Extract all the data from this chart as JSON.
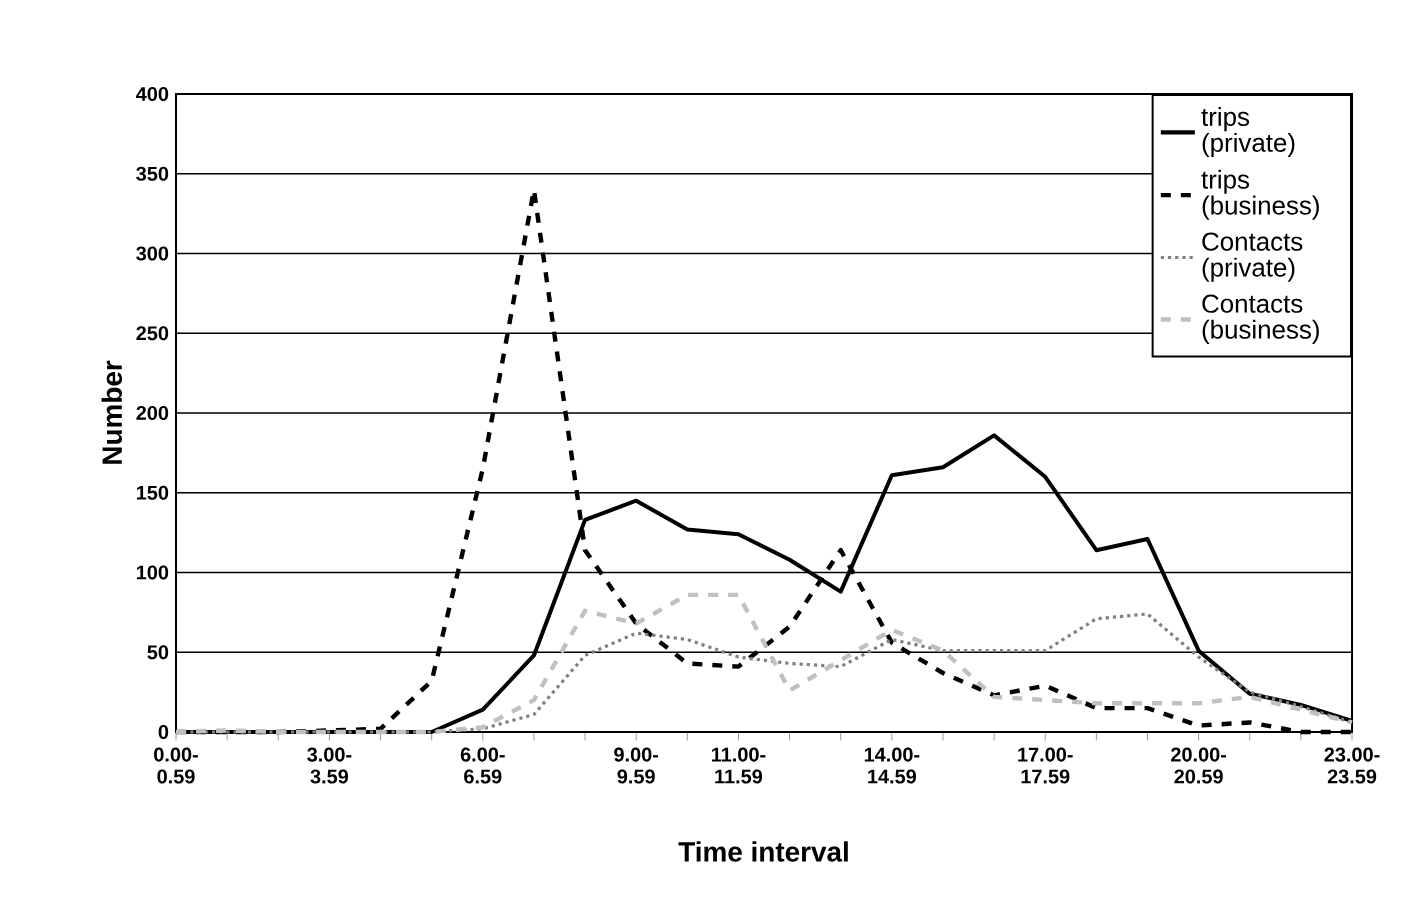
{
  "chart_data": {
    "type": "line",
    "xlabel": "Time interval",
    "ylabel": "Number",
    "categories": [
      "0.00-0.59",
      null,
      null,
      "3.00-3.59",
      null,
      null,
      "6.00-6.59",
      null,
      null,
      "9.00-9.59",
      null,
      "11.00-11.59",
      null,
      null,
      "14.00-14.59",
      null,
      null,
      "17.00-17.59",
      null,
      null,
      "20.00-20.59",
      null,
      null,
      "23.00-23.59"
    ],
    "series": [
      {
        "name": "trips (private)",
        "color": "#000000",
        "line_style": "solid",
        "values": [
          0,
          0,
          0,
          0,
          0,
          0,
          14,
          48,
          133,
          145,
          127,
          124,
          108,
          88,
          161,
          166,
          186,
          160,
          114,
          121,
          51,
          24,
          17,
          7
        ]
      },
      {
        "name": "trips (business)",
        "color": "#000000",
        "line_style": "dashed",
        "values": [
          0,
          0,
          0,
          1,
          2,
          32,
          165,
          340,
          114,
          68,
          43,
          41,
          66,
          114,
          56,
          37,
          23,
          29,
          15,
          15,
          4,
          6,
          0,
          0
        ]
      },
      {
        "name": "Contacts (private)",
        "color": "#808080",
        "line_style": "dotted",
        "values": [
          0,
          0,
          0,
          0,
          0,
          0,
          2,
          11,
          48,
          62,
          58,
          47,
          43,
          41,
          58,
          51,
          51,
          51,
          71,
          74,
          47,
          25,
          16,
          6
        ]
      },
      {
        "name": "Contacts (business)",
        "color": "#c0c0c0",
        "line_style": "dashed",
        "values": [
          0,
          1,
          0,
          0,
          0,
          0,
          3,
          20,
          76,
          68,
          86,
          86,
          26,
          45,
          64,
          51,
          22,
          20,
          18,
          18,
          18,
          22,
          14,
          6
        ]
      }
    ],
    "ylim": [
      0,
      400
    ],
    "yticks": [
      0,
      50,
      100,
      150,
      200,
      250,
      300,
      350,
      400
    ],
    "grid": "y",
    "legend": "top right",
    "marker": "none"
  }
}
